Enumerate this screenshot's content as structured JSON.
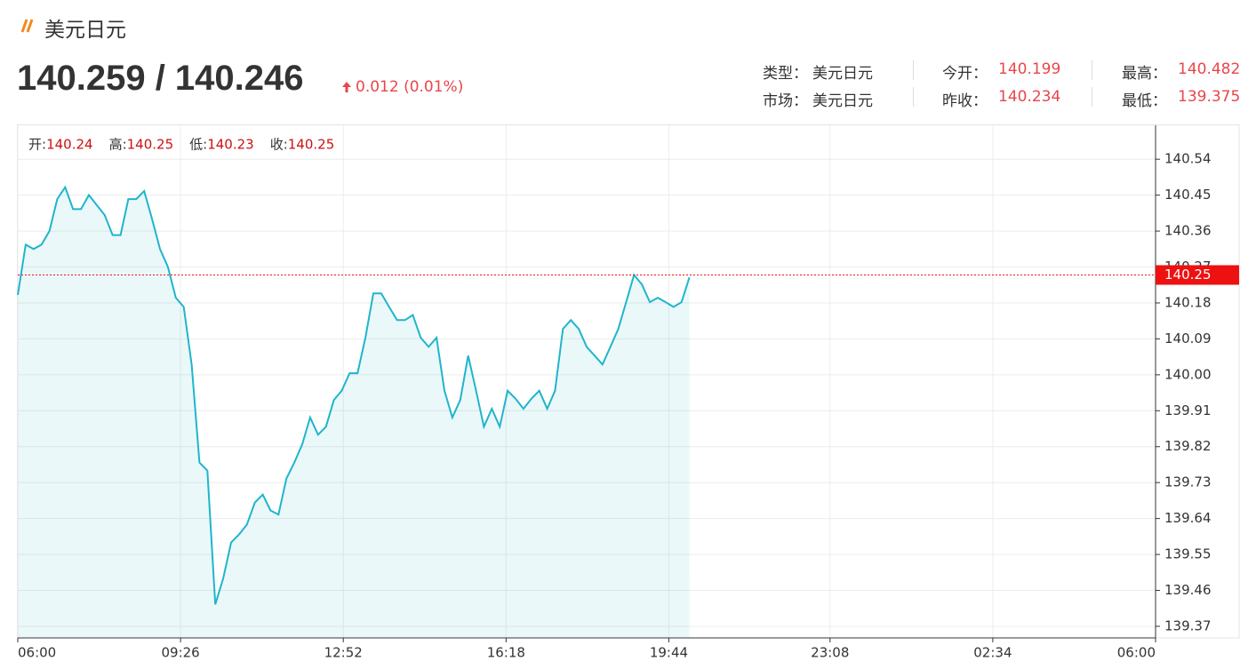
{
  "header": {
    "title": "美元日元",
    "price": "140.259 / 140.246",
    "change": "0.012 (0.01%)",
    "info": [
      {
        "label": "类型：",
        "value": "美元日元"
      },
      {
        "label": "今开：",
        "value": "140.199"
      },
      {
        "label": "最高：",
        "value": "140.482"
      },
      {
        "label": "市场：",
        "value": "美元日元"
      },
      {
        "label": "昨收：",
        "value": "140.234"
      },
      {
        "label": "最低：",
        "value": "139.375"
      }
    ]
  },
  "chart_data": {
    "type": "line",
    "ohlc": [
      {
        "label": "开:",
        "value": "140.24"
      },
      {
        "label": "高:",
        "value": "140.25"
      },
      {
        "label": "低:",
        "value": "140.23"
      },
      {
        "label": "收:",
        "value": "140.25"
      }
    ],
    "x": [
      0,
      10,
      20,
      30,
      40,
      50,
      60,
      70,
      80,
      90,
      100,
      110,
      120,
      130,
      140,
      150,
      160,
      170,
      180,
      190,
      200,
      210,
      220,
      230,
      240,
      250,
      260,
      270,
      280,
      290,
      300,
      310,
      320,
      330,
      340,
      350,
      360,
      370,
      380,
      390,
      400,
      410,
      420,
      430,
      440,
      450,
      460,
      470,
      480,
      490,
      500,
      510,
      520,
      530,
      540,
      550,
      560,
      570,
      580,
      590,
      600,
      610,
      620,
      630,
      640,
      650,
      660,
      670,
      680,
      690,
      700,
      710,
      720,
      730,
      740,
      750,
      760,
      770,
      780,
      790,
      800,
      810,
      820,
      830,
      840,
      850
    ],
    "series": [
      {
        "color": "#1fb5cc",
        "values": [
          140.2,
          140.326,
          140.315,
          140.326,
          140.36,
          140.44,
          140.47,
          140.415,
          140.415,
          140.45,
          140.425,
          140.4,
          140.35,
          140.35,
          140.44,
          140.44,
          140.46,
          140.39,
          140.315,
          140.27,
          140.193,
          140.17,
          140.026,
          139.78,
          139.76,
          139.425,
          139.49,
          139.58,
          139.6,
          139.625,
          139.68,
          139.7,
          139.66,
          139.65,
          139.74,
          139.78,
          139.826,
          139.893,
          139.85,
          139.87,
          139.937,
          139.96,
          140.004,
          140.004,
          140.093,
          140.204,
          140.204,
          140.17,
          140.137,
          140.137,
          140.15,
          140.093,
          140.07,
          140.093,
          139.96,
          139.893,
          139.937,
          140.048,
          139.96,
          139.87,
          139.915,
          139.87,
          139.96,
          139.94,
          139.915,
          139.94,
          139.96,
          139.915,
          139.96,
          140.115,
          140.137,
          140.115,
          140.07,
          140.048,
          140.026,
          140.07,
          140.115,
          140.182,
          140.25,
          140.226,
          140.182,
          140.193,
          140.182,
          140.17,
          140.182,
          140.244
        ]
      }
    ],
    "current": {
      "value": 140.25,
      "label": "140.25",
      "color": "#ee1111"
    },
    "xlim": [
      0,
      1440
    ],
    "xticks": [
      {
        "value": 0,
        "label": "06:00"
      },
      {
        "value": 206,
        "label": "09:26"
      },
      {
        "value": 412,
        "label": "12:52"
      },
      {
        "value": 618,
        "label": "16:18"
      },
      {
        "value": 824,
        "label": "19:44"
      },
      {
        "value": 1028,
        "label": "23:08"
      },
      {
        "value": 1234,
        "label": "02:34"
      },
      {
        "value": 1440,
        "label": "06:00"
      }
    ],
    "ylim": [
      139.341,
      140.625
    ],
    "yticks": [
      140.54,
      140.45,
      140.36,
      140.27,
      140.18,
      140.09,
      {
        "value": 140,
        "label": "140.00"
      },
      139.91,
      139.82,
      139.73,
      139.64,
      139.55,
      139.46,
      139.37
    ],
    "grid": true
  }
}
